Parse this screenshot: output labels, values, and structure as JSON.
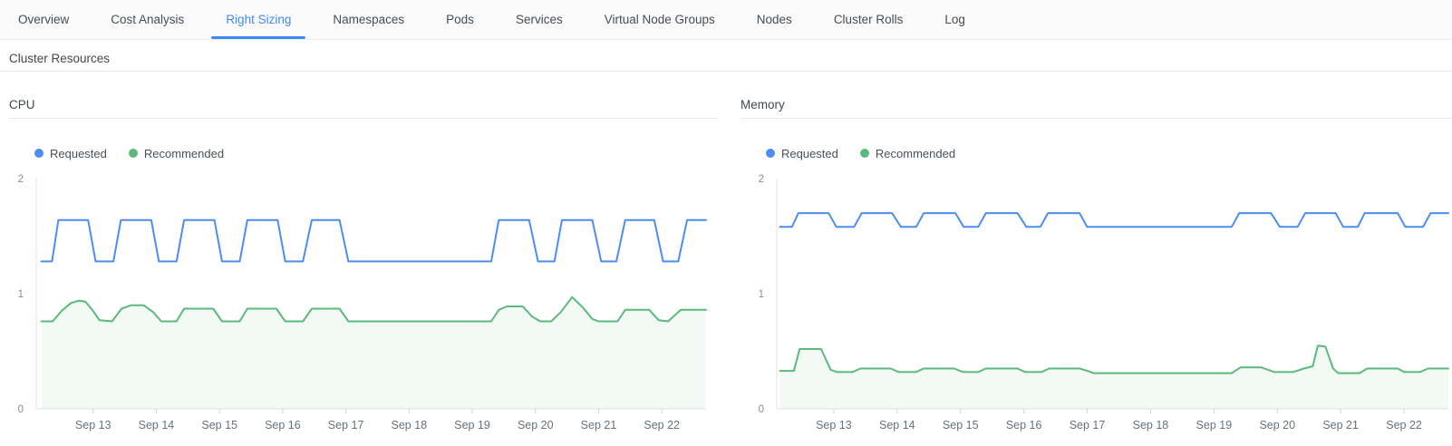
{
  "tabs": {
    "items": [
      {
        "label": "Overview",
        "active": false
      },
      {
        "label": "Cost Analysis",
        "active": false
      },
      {
        "label": "Right Sizing",
        "active": true
      },
      {
        "label": "Namespaces",
        "active": false
      },
      {
        "label": "Pods",
        "active": false
      },
      {
        "label": "Services",
        "active": false
      },
      {
        "label": "Virtual Node Groups",
        "active": false
      },
      {
        "label": "Nodes",
        "active": false
      },
      {
        "label": "Cluster Rolls",
        "active": false
      },
      {
        "label": "Log",
        "active": false
      }
    ]
  },
  "section": {
    "title": "Cluster Resources"
  },
  "colors": {
    "accent": "#3d8af7",
    "requested_line": "#4d8df2",
    "recommended_line": "#5cb97c",
    "recommended_fill": "rgba(92,185,124,0.07)",
    "axis_line": "#e2e2e2",
    "tick_mark": "#d2d2d2",
    "ytick_label": "#8c8c8c",
    "xtick_label": "#68707a"
  },
  "chart_data": [
    {
      "type": "line",
      "title": "CPU",
      "xlim": [
        12.1,
        22.7
      ],
      "ylim": [
        0,
        2
      ],
      "yticks": [
        0,
        1,
        2
      ],
      "xticks": [
        {
          "v": 13,
          "label": "Sep 13"
        },
        {
          "v": 14,
          "label": "Sep 14"
        },
        {
          "v": 15,
          "label": "Sep 15"
        },
        {
          "v": 16,
          "label": "Sep 16"
        },
        {
          "v": 17,
          "label": "Sep 17"
        },
        {
          "v": 18,
          "label": "Sep 18"
        },
        {
          "v": 19,
          "label": "Sep 19"
        },
        {
          "v": 20,
          "label": "Sep 20"
        },
        {
          "v": 21,
          "label": "Sep 21"
        },
        {
          "v": 22,
          "label": "Sep 22"
        }
      ],
      "legend_position": "top-left",
      "grid": false,
      "series": [
        {
          "name": "Requested",
          "color": "#4d8df2",
          "fill": false,
          "points": [
            [
              12.18,
              1.28
            ],
            [
              12.35,
              1.28
            ],
            [
              12.45,
              1.64
            ],
            [
              12.92,
              1.64
            ],
            [
              13.04,
              1.28
            ],
            [
              13.32,
              1.28
            ],
            [
              13.44,
              1.64
            ],
            [
              13.92,
              1.64
            ],
            [
              14.04,
              1.28
            ],
            [
              14.32,
              1.28
            ],
            [
              14.44,
              1.64
            ],
            [
              14.92,
              1.64
            ],
            [
              15.04,
              1.28
            ],
            [
              15.32,
              1.28
            ],
            [
              15.44,
              1.64
            ],
            [
              15.92,
              1.64
            ],
            [
              16.04,
              1.28
            ],
            [
              16.32,
              1.28
            ],
            [
              16.46,
              1.64
            ],
            [
              16.9,
              1.64
            ],
            [
              17.04,
              1.28
            ],
            [
              19.3,
              1.28
            ],
            [
              19.42,
              1.64
            ],
            [
              19.9,
              1.64
            ],
            [
              20.04,
              1.28
            ],
            [
              20.3,
              1.28
            ],
            [
              20.42,
              1.64
            ],
            [
              20.9,
              1.64
            ],
            [
              21.04,
              1.28
            ],
            [
              21.28,
              1.28
            ],
            [
              21.42,
              1.64
            ],
            [
              21.88,
              1.64
            ],
            [
              22.02,
              1.28
            ],
            [
              22.26,
              1.28
            ],
            [
              22.4,
              1.64
            ],
            [
              22.7,
              1.64
            ]
          ]
        },
        {
          "name": "Recommended",
          "color": "#5cb97c",
          "fill": true,
          "points": [
            [
              12.18,
              0.76
            ],
            [
              12.36,
              0.76
            ],
            [
              12.5,
              0.85
            ],
            [
              12.65,
              0.92
            ],
            [
              12.78,
              0.94
            ],
            [
              12.88,
              0.93
            ],
            [
              13.0,
              0.85
            ],
            [
              13.1,
              0.77
            ],
            [
              13.3,
              0.76
            ],
            [
              13.45,
              0.87
            ],
            [
              13.6,
              0.9
            ],
            [
              13.8,
              0.9
            ],
            [
              13.95,
              0.84
            ],
            [
              14.08,
              0.76
            ],
            [
              14.32,
              0.76
            ],
            [
              14.44,
              0.87
            ],
            [
              14.9,
              0.87
            ],
            [
              15.04,
              0.76
            ],
            [
              15.32,
              0.76
            ],
            [
              15.44,
              0.87
            ],
            [
              15.9,
              0.87
            ],
            [
              16.04,
              0.76
            ],
            [
              16.32,
              0.76
            ],
            [
              16.46,
              0.87
            ],
            [
              16.9,
              0.87
            ],
            [
              17.04,
              0.76
            ],
            [
              19.3,
              0.76
            ],
            [
              19.42,
              0.86
            ],
            [
              19.55,
              0.89
            ],
            [
              19.8,
              0.89
            ],
            [
              19.95,
              0.8
            ],
            [
              20.08,
              0.76
            ],
            [
              20.25,
              0.76
            ],
            [
              20.4,
              0.84
            ],
            [
              20.58,
              0.97
            ],
            [
              20.75,
              0.88
            ],
            [
              20.9,
              0.78
            ],
            [
              21.0,
              0.76
            ],
            [
              21.3,
              0.76
            ],
            [
              21.42,
              0.86
            ],
            [
              21.8,
              0.86
            ],
            [
              21.95,
              0.77
            ],
            [
              22.1,
              0.76
            ],
            [
              22.3,
              0.86
            ],
            [
              22.7,
              0.86
            ]
          ]
        }
      ]
    },
    {
      "type": "line",
      "title": "Memory",
      "xlim": [
        12.1,
        22.7
      ],
      "ylim": [
        0,
        2
      ],
      "yticks": [
        0,
        1,
        2
      ],
      "xticks": [
        {
          "v": 13,
          "label": "Sep 13"
        },
        {
          "v": 14,
          "label": "Sep 14"
        },
        {
          "v": 15,
          "label": "Sep 15"
        },
        {
          "v": 16,
          "label": "Sep 16"
        },
        {
          "v": 17,
          "label": "Sep 17"
        },
        {
          "v": 18,
          "label": "Sep 18"
        },
        {
          "v": 19,
          "label": "Sep 19"
        },
        {
          "v": 20,
          "label": "Sep 20"
        },
        {
          "v": 21,
          "label": "Sep 21"
        },
        {
          "v": 22,
          "label": "Sep 22"
        }
      ],
      "legend_position": "top-left",
      "grid": false,
      "series": [
        {
          "name": "Requested",
          "color": "#4d8df2",
          "fill": false,
          "points": [
            [
              12.15,
              1.58
            ],
            [
              12.34,
              1.58
            ],
            [
              12.44,
              1.7
            ],
            [
              12.92,
              1.7
            ],
            [
              13.04,
              1.58
            ],
            [
              13.32,
              1.58
            ],
            [
              13.44,
              1.7
            ],
            [
              13.92,
              1.7
            ],
            [
              14.06,
              1.58
            ],
            [
              14.3,
              1.58
            ],
            [
              14.42,
              1.7
            ],
            [
              14.92,
              1.7
            ],
            [
              15.05,
              1.58
            ],
            [
              15.28,
              1.58
            ],
            [
              15.4,
              1.7
            ],
            [
              15.9,
              1.7
            ],
            [
              16.04,
              1.58
            ],
            [
              16.26,
              1.58
            ],
            [
              16.38,
              1.7
            ],
            [
              16.88,
              1.7
            ],
            [
              17.0,
              1.58
            ],
            [
              19.28,
              1.58
            ],
            [
              19.4,
              1.7
            ],
            [
              19.9,
              1.7
            ],
            [
              20.04,
              1.58
            ],
            [
              20.32,
              1.58
            ],
            [
              20.44,
              1.7
            ],
            [
              20.92,
              1.7
            ],
            [
              21.04,
              1.58
            ],
            [
              21.27,
              1.58
            ],
            [
              21.38,
              1.7
            ],
            [
              21.9,
              1.7
            ],
            [
              22.02,
              1.58
            ],
            [
              22.3,
              1.58
            ],
            [
              22.42,
              1.7
            ],
            [
              22.7,
              1.7
            ]
          ]
        },
        {
          "name": "Recommended",
          "color": "#5cb97c",
          "fill": true,
          "points": [
            [
              12.15,
              0.33
            ],
            [
              12.37,
              0.33
            ],
            [
              12.46,
              0.52
            ],
            [
              12.8,
              0.52
            ],
            [
              12.95,
              0.34
            ],
            [
              13.05,
              0.32
            ],
            [
              13.3,
              0.32
            ],
            [
              13.42,
              0.35
            ],
            [
              13.9,
              0.35
            ],
            [
              14.02,
              0.32
            ],
            [
              14.3,
              0.32
            ],
            [
              14.42,
              0.35
            ],
            [
              14.9,
              0.35
            ],
            [
              15.04,
              0.32
            ],
            [
              15.28,
              0.32
            ],
            [
              15.4,
              0.35
            ],
            [
              15.9,
              0.35
            ],
            [
              16.02,
              0.32
            ],
            [
              16.28,
              0.32
            ],
            [
              16.4,
              0.35
            ],
            [
              16.88,
              0.35
            ],
            [
              17.0,
              0.33
            ],
            [
              17.1,
              0.31
            ],
            [
              19.28,
              0.31
            ],
            [
              19.42,
              0.36
            ],
            [
              19.75,
              0.36
            ],
            [
              19.95,
              0.32
            ],
            [
              20.25,
              0.32
            ],
            [
              20.42,
              0.35
            ],
            [
              20.56,
              0.37
            ],
            [
              20.64,
              0.55
            ],
            [
              20.76,
              0.54
            ],
            [
              20.88,
              0.35
            ],
            [
              20.96,
              0.31
            ],
            [
              21.3,
              0.31
            ],
            [
              21.42,
              0.35
            ],
            [
              21.9,
              0.35
            ],
            [
              22.0,
              0.32
            ],
            [
              22.25,
              0.32
            ],
            [
              22.38,
              0.35
            ],
            [
              22.7,
              0.35
            ]
          ]
        }
      ]
    }
  ]
}
